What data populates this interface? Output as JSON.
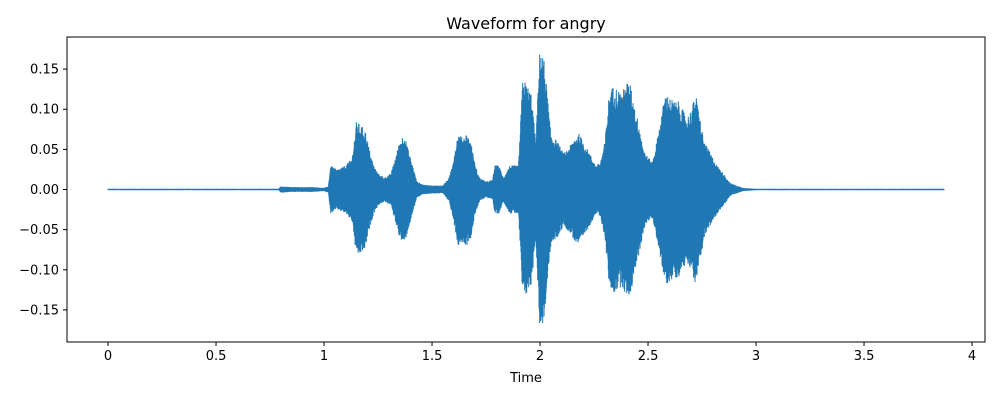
{
  "chart_data": {
    "type": "line",
    "title": "Waveform for angry",
    "xlabel": "Time",
    "ylabel": "",
    "xlim": [
      -0.19,
      4.06
    ],
    "ylim": [
      -0.19,
      0.19
    ],
    "grid": false,
    "x_ticks": [
      0,
      0.5,
      1,
      1.5,
      2,
      2.5,
      3,
      3.5,
      4
    ],
    "x_tick_labels": [
      "0",
      "0.5",
      "1",
      "1.5",
      "2",
      "2.5",
      "3",
      "3.5",
      "4"
    ],
    "y_ticks": [
      -0.15,
      -0.1,
      -0.05,
      0.0,
      0.05,
      0.1,
      0.15
    ],
    "y_tick_labels": [
      "−0.15",
      "−0.10",
      "−0.05",
      "0.00",
      "0.05",
      "0.10",
      "0.15"
    ],
    "series_color": "#1f77b4",
    "signal_span": [
      0,
      3.87
    ],
    "envelope": {
      "time": [
        0,
        0.79,
        0.8,
        0.85,
        0.9,
        0.95,
        1.0,
        1.02,
        1.03,
        1.06,
        1.1,
        1.13,
        1.15,
        1.17,
        1.19,
        1.21,
        1.23,
        1.25,
        1.28,
        1.31,
        1.33,
        1.35,
        1.37,
        1.39,
        1.41,
        1.43,
        1.46,
        1.5,
        1.55,
        1.58,
        1.6,
        1.62,
        1.64,
        1.66,
        1.68,
        1.7,
        1.72,
        1.75,
        1.78,
        1.79,
        1.81,
        1.83,
        1.86,
        1.9,
        1.92,
        1.94,
        1.96,
        1.98,
        2.0,
        2.02,
        2.05,
        2.08,
        2.11,
        2.14,
        2.16,
        2.18,
        2.2,
        2.22,
        2.24,
        2.26,
        2.28,
        2.3,
        2.32,
        2.34,
        2.36,
        2.38,
        2.4,
        2.42,
        2.44,
        2.46,
        2.48,
        2.5,
        2.52,
        2.54,
        2.56,
        2.58,
        2.6,
        2.62,
        2.64,
        2.66,
        2.68,
        2.7,
        2.72,
        2.74,
        2.76,
        2.78,
        2.8,
        2.82,
        2.85,
        2.88,
        2.9,
        2.92,
        2.94,
        3.0,
        3.87
      ],
      "amplitude": [
        0.0008,
        0.0008,
        0.004,
        0.003,
        0.003,
        0.003,
        0.002,
        0.004,
        0.03,
        0.025,
        0.03,
        0.04,
        0.085,
        0.08,
        0.075,
        0.05,
        0.03,
        0.02,
        0.015,
        0.02,
        0.04,
        0.06,
        0.07,
        0.05,
        0.03,
        0.01,
        0.006,
        0.005,
        0.005,
        0.015,
        0.04,
        0.07,
        0.065,
        0.07,
        0.06,
        0.03,
        0.015,
        0.01,
        0.012,
        0.03,
        0.03,
        0.015,
        0.03,
        0.03,
        0.14,
        0.13,
        0.12,
        0.06,
        0.18,
        0.16,
        0.07,
        0.06,
        0.045,
        0.055,
        0.065,
        0.07,
        0.06,
        0.05,
        0.04,
        0.03,
        0.035,
        0.06,
        0.12,
        0.13,
        0.125,
        0.12,
        0.135,
        0.13,
        0.1,
        0.08,
        0.05,
        0.04,
        0.035,
        0.06,
        0.09,
        0.12,
        0.115,
        0.11,
        0.11,
        0.1,
        0.09,
        0.1,
        0.12,
        0.09,
        0.06,
        0.05,
        0.04,
        0.03,
        0.02,
        0.008,
        0.006,
        0.004,
        0.002,
        0.0008,
        0.0008
      ],
      "clip_note": ""
    }
  }
}
